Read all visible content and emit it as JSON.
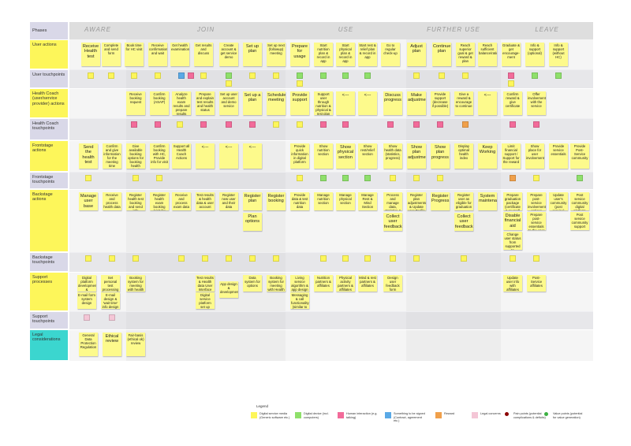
{
  "phases_label": "Phases",
  "phases": [
    "AWARE",
    "JOIN",
    "USE",
    "FURTHER USE",
    "LEAVE"
  ],
  "rows": [
    {
      "label": "User actions",
      "notes": [
        "Receive Health test",
        "Complete and send form",
        "Book time for HC visit",
        "Receive confirmation and wait",
        "Get health examination",
        "Get results and discuss",
        "Create account & get service demo",
        "Set up plan",
        "Set up next (followup) meeting",
        "Prepare for usage",
        "Start nutrition plan & record in app",
        "Start physical plan & record in app",
        "Start rest & relief plan & record in app",
        "Go to regular check-up",
        "Adjust plan",
        "Continue plan",
        "Reach superior goal & get reward & plan",
        "Reach sufficient balance/rating",
        "Graduate & get encourage-ment",
        "Info & support (optional)",
        "Info & support (without HC)"
      ]
    },
    {
      "label": "User touchpoints"
    },
    {
      "label": "Health Coach (user/service provider) actions",
      "notes": [
        "Receive booking request",
        "Confirm booking (ASAP)",
        "Analyze health exam results and prepare results",
        "Prepare and explain test results and health status",
        "Set up user account and demo service",
        "Set up a plan",
        "Schedule meeting",
        "Provide support",
        "Support user through nutrition & physical & rest plan",
        "<---",
        "<---",
        "Discuss progress",
        "Make adjustments",
        "Provide support (decrease if possible)",
        "Give a reward & encourage to continue",
        "<---",
        "Confirm reward & give certificate",
        "Offer involvement with the service"
      ]
    },
    {
      "label": "Health Coach touchpoints"
    },
    {
      "label": "Frontstage actions",
      "notes": [
        "Send the health test",
        "Confirm and give information for the meeting time",
        "Give available booking options for booking health check",
        "Confirm booking with HC, Provide info for visit",
        "Support all Health Coach Actions",
        "<---",
        "<---",
        "<---",
        "Provide quick information in digital platform",
        "Show nutrition section",
        "Show physical section",
        "Show rest/relief section",
        "Show health data (statistics, progress)",
        "Show plan adjustments",
        "Show plan progress",
        "Display optimal health index",
        "Keep Working",
        "Limit financial support / Support for the reward",
        "Show place for user involvement",
        "Provide service essentials",
        "Provide Post-Service community"
      ]
    },
    {
      "label": "Frontstage touchpoints"
    },
    {
      "label": "Backstage actions",
      "notes": [
        "Manage user base",
        "Receive and process health data",
        "Register health test booking and send info",
        "Register health exam booking (visit for data flow)",
        "Receive and process exam data",
        "Test results & health data & user account",
        "Register new user and their data",
        "Register plan",
        "Plan options",
        "Register booking",
        "Provide data & test nutrition data",
        "Manage nutrition section",
        "Manage physical section",
        "Manage Rest & Mind Section",
        "Process and manage data, statistics & progress",
        "Collect user feedback",
        "Register plan adjustments & Update user Profile",
        "Register Progress",
        "Register user as eligible for graduation",
        "Collect user feedback",
        "System maintenance",
        "Prepare graduation package (certificate & reward)",
        "Disable financial aid",
        "Change user status from supported to autonomous",
        "Prepare post-service involvement options",
        "Prepare post-service essentials to the user",
        "Update user's community (post service)",
        "Post service community digital platform",
        "Post service community support"
      ]
    },
    {
      "label": "Backstage touchpoints"
    },
    {
      "label": "Support processes",
      "notes": [
        "Digital platform development & maintenance",
        "E-mail form system design",
        "Set personal test processing software",
        "E-mail design & 'wait time' info design",
        "Booking system for meeting with health coach",
        "Test results & Health data User Interface (UI)",
        "Digital service platform set up features",
        "App design & development",
        "Data system for options",
        "Booking system for meeting with Health Coach",
        "Living service algorithm & app design",
        "Messaging & call functionality (similar to WIT app)",
        "Nutrition partners & affiliates",
        "Physical activity partners & affiliates",
        "Mind & rest partners & affiliates",
        "Design user feedback form",
        "Update user info with affiliates",
        "Post-Service affiliates"
      ]
    },
    {
      "label": "Support touchpoints"
    },
    {
      "label": "Legal considerations",
      "notes": [
        "General Data Protection Regulation",
        "Ethical review",
        "Fair-basis (ethical ok) review"
      ]
    }
  ],
  "legend": {
    "title": "Legend",
    "items": [
      "Digital service media (Generic software etc.)",
      "Digital device (incl. computers)",
      "Human interaction (e.g. talking)",
      "Something to be signed (Contract, agreement etc.)",
      "Reward",
      "Legal concerns",
      "Pain points (potential complications & deficits)",
      "Value points (potential for value generation)"
    ]
  }
}
